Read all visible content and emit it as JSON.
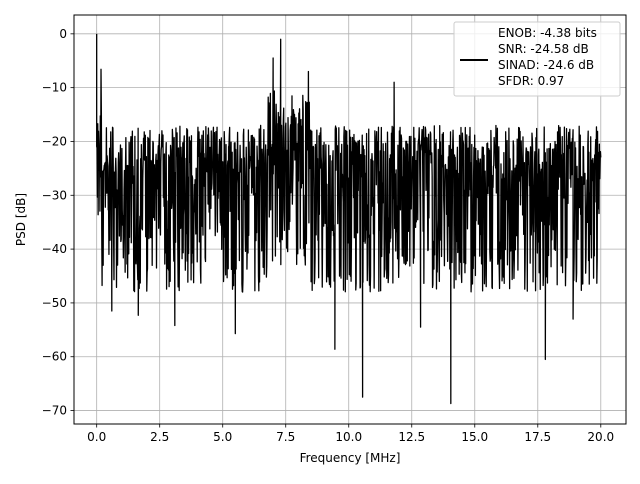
{
  "chart_data": {
    "type": "line",
    "title": "",
    "xlabel": "Frequency [MHz]",
    "ylabel": "PSD [dB]",
    "xlim": [
      -0.9,
      21.0
    ],
    "ylim": [
      -72.5,
      3.5
    ],
    "grid": true,
    "legend_position": "top-right",
    "x_ticks": [
      0.0,
      2.5,
      5.0,
      7.5,
      10.0,
      12.5,
      15.0,
      17.5,
      20.0
    ],
    "x_tick_labels": [
      "0.0",
      "2.5",
      "5.0",
      "7.5",
      "10.0",
      "12.5",
      "15.0",
      "17.5",
      "20.0"
    ],
    "y_ticks": [
      0,
      -10,
      -20,
      -30,
      -40,
      -50,
      -60,
      -70
    ],
    "y_tick_labels": [
      "0",
      "−10",
      "−20",
      "−30",
      "−40",
      "−50",
      "−60",
      "−70"
    ],
    "series": [
      {
        "name": "ENOB: -4.38 bits\nSNR: -24.58 dB\nSINAD: -24.6 dB\nSFDR: 0.97",
        "color": "#000000",
        "x_range": [
          0.0,
          20.0
        ],
        "noise_floor_band": [
          -12,
          -42
        ],
        "peaks": [
          {
            "x": 0.0,
            "y": 0.0
          },
          {
            "x": 7.3,
            "y": -1.0
          },
          {
            "x": 7.0,
            "y": -4.5
          },
          {
            "x": 8.4,
            "y": -7.0
          },
          {
            "x": 11.8,
            "y": -9.0
          }
        ],
        "dips": [
          {
            "x": 0.6,
            "y": -51.5
          },
          {
            "x": 1.65,
            "y": -52.3
          },
          {
            "x": 3.1,
            "y": -54.2
          },
          {
            "x": 5.5,
            "y": -55.7
          },
          {
            "x": 9.45,
            "y": -58.6
          },
          {
            "x": 10.55,
            "y": -67.5
          },
          {
            "x": 12.85,
            "y": -54.5
          },
          {
            "x": 14.05,
            "y": -68.7
          },
          {
            "x": 17.8,
            "y": -60.5
          },
          {
            "x": 18.9,
            "y": -53.0
          }
        ]
      }
    ],
    "legend_lines": [
      "ENOB: -4.38 bits",
      "SNR: -24.58 dB",
      "SINAD: -24.6 dB",
      "SFDR: 0.97"
    ]
  }
}
